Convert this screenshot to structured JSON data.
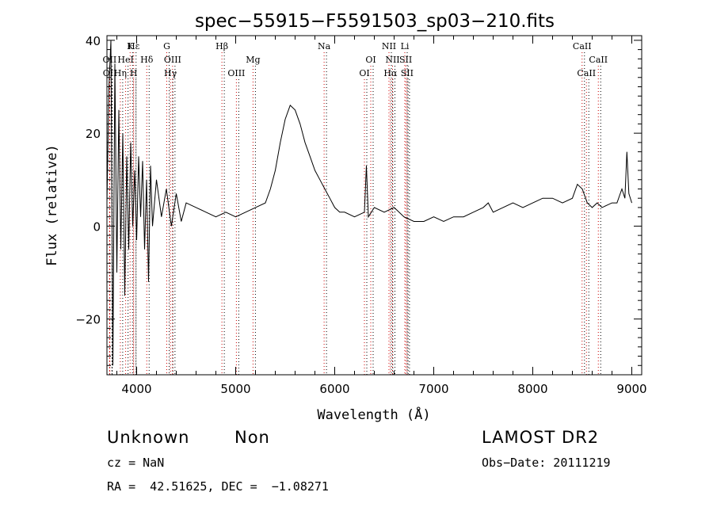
{
  "chart_data": {
    "type": "line",
    "title": "spec−55915−F5591503_sp03−210.fits",
    "xlabel": "Wavelength (Å)",
    "ylabel": "Flux (relative)",
    "xlim": [
      3700,
      9100
    ],
    "ylim": [
      -32,
      41
    ],
    "x_ticks": [
      4000,
      5000,
      6000,
      7000,
      8000,
      9000
    ],
    "x_tick_labels": [
      "4000",
      "5000",
      "6000",
      "7000",
      "8000",
      "9000"
    ],
    "y_ticks": [
      -20,
      0,
      20,
      40
    ],
    "y_tick_labels": [
      "−20",
      "0",
      "20",
      "40"
    ],
    "grid": false,
    "series": [
      {
        "color": "#000000",
        "x": [
          3700,
          3720,
          3740,
          3760,
          3780,
          3800,
          3820,
          3840,
          3860,
          3880,
          3900,
          3920,
          3940,
          3960,
          3980,
          4000,
          4020,
          4040,
          4060,
          4080,
          4100,
          4120,
          4140,
          4160,
          4200,
          4250,
          4300,
          4350,
          4400,
          4450,
          4500,
          4600,
          4700,
          4800,
          4900,
          5000,
          5100,
          5200,
          5300,
          5350,
          5400,
          5450,
          5500,
          5550,
          5600,
          5650,
          5700,
          5750,
          5800,
          5850,
          5900,
          5950,
          6000,
          6050,
          6100,
          6200,
          6300,
          6320,
          6340,
          6400,
          6500,
          6600,
          6700,
          6800,
          6900,
          7000,
          7100,
          7200,
          7300,
          7400,
          7500,
          7550,
          7600,
          7700,
          7800,
          7900,
          8000,
          8100,
          8200,
          8300,
          8400,
          8450,
          8500,
          8550,
          8600,
          8650,
          8700,
          8800,
          8850,
          8900,
          8930,
          8950,
          8970,
          9000
        ],
        "y": [
          5,
          30,
          40,
          -30,
          35,
          -10,
          25,
          -5,
          20,
          -15,
          15,
          -5,
          18,
          0,
          12,
          -3,
          15,
          2,
          14,
          -5,
          10,
          -12,
          13,
          0,
          10,
          2,
          8,
          0,
          7,
          1,
          5,
          4,
          3,
          2,
          3,
          2,
          3,
          4,
          5,
          8,
          12,
          18,
          23,
          26,
          25,
          22,
          18,
          15,
          12,
          10,
          8,
          6,
          4,
          3,
          3,
          2,
          3,
          13,
          2,
          4,
          3,
          4,
          2,
          1,
          1,
          2,
          1,
          2,
          2,
          3,
          4,
          5,
          3,
          4,
          5,
          4,
          5,
          6,
          6,
          5,
          6,
          9,
          8,
          5,
          4,
          5,
          4,
          5,
          5,
          8,
          6,
          16,
          7,
          5
        ]
      }
    ],
    "line_markers": [
      {
        "label": "Hε",
        "x": 3970,
        "row": 1
      },
      {
        "label": "OII",
        "x": 3727,
        "row": 2
      },
      {
        "label": "HeI",
        "x": 3889,
        "row": 2
      },
      {
        "label": "K",
        "x": 3934,
        "row": 1
      },
      {
        "label": "OII",
        "x": 3729,
        "row": 3
      },
      {
        "label": "Hη",
        "x": 3835,
        "row": 3
      },
      {
        "label": "H",
        "x": 3969,
        "row": 3
      },
      {
        "label": "Hδ",
        "x": 4102,
        "row": 2
      },
      {
        "label": "G",
        "x": 4304,
        "row": 1
      },
      {
        "label": "OIII",
        "x": 4363,
        "row": 2
      },
      {
        "label": "Hγ",
        "x": 4341,
        "row": 3
      },
      {
        "label": "Hβ",
        "x": 4861,
        "row": 1
      },
      {
        "label": "OIII",
        "x": 5007,
        "row": 3
      },
      {
        "label": "Mg",
        "x": 5175,
        "row": 2
      },
      {
        "label": "Na",
        "x": 5893,
        "row": 1
      },
      {
        "label": "OI",
        "x": 6300,
        "row": 3
      },
      {
        "label": "OI",
        "x": 6364,
        "row": 2
      },
      {
        "label": "NII",
        "x": 6548,
        "row": 1
      },
      {
        "label": "Li",
        "x": 6708,
        "row": 1
      },
      {
        "label": "NII",
        "x": 6584,
        "row": 2
      },
      {
        "label": "SII",
        "x": 6717,
        "row": 2
      },
      {
        "label": "Hα",
        "x": 6563,
        "row": 3
      },
      {
        "label": "SII",
        "x": 6731,
        "row": 3
      },
      {
        "label": "CaII",
        "x": 8498,
        "row": 1
      },
      {
        "label": "CaII",
        "x": 8662,
        "row": 2
      },
      {
        "label": "CaII",
        "x": 8542,
        "row": 3
      }
    ]
  },
  "info": {
    "classification": "Unknown",
    "subclass": "Non",
    "survey": "LAMOST DR2",
    "cz": "cz = NaN",
    "obs_date": "Obs−Date: 20111219",
    "coords": "RA =  42.51625, DEC =  −1.08271"
  },
  "colors": {
    "marker_line": "#cc0000",
    "marker_dots": "#000000",
    "spectrum": "#000000"
  }
}
